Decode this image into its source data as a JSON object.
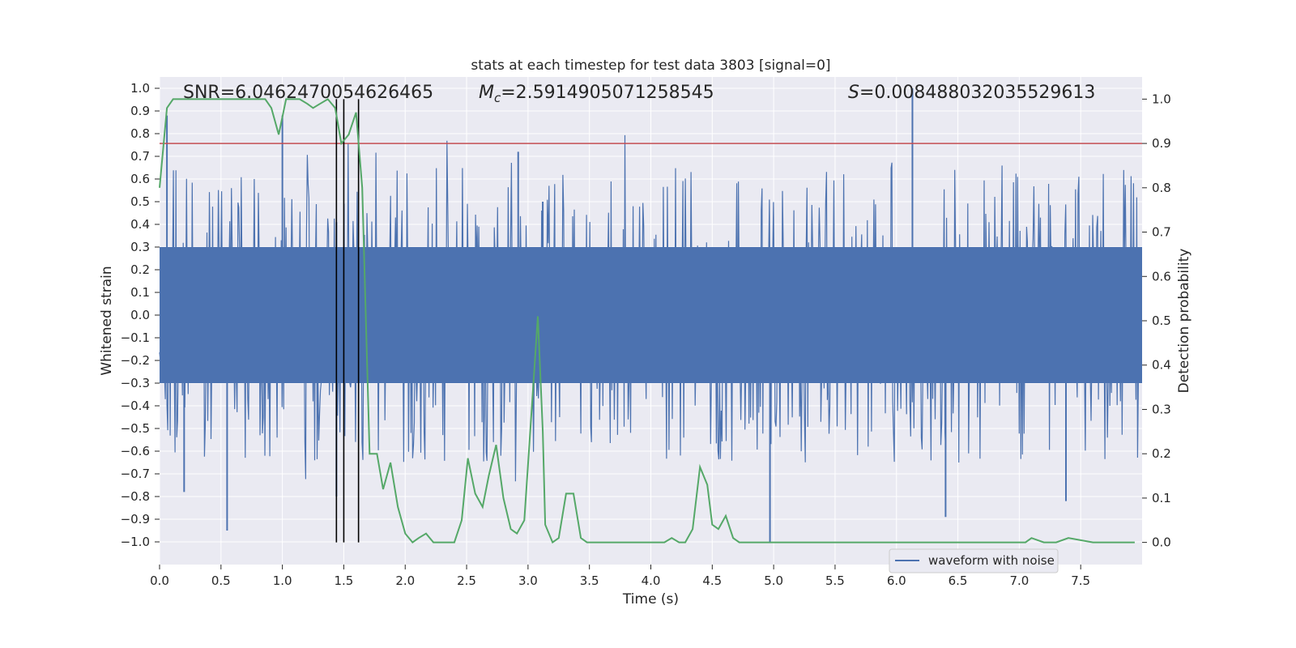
{
  "chart_data": {
    "type": "line",
    "title": "stats at each timestep for test data 3803 [signal=0]",
    "xlabel": "Time (s)",
    "ylabel": "Whitened strain",
    "y2label": "Detection probability",
    "xlim": [
      0.0,
      8.0
    ],
    "ylim": [
      -1.1,
      1.05
    ],
    "y2lim": [
      -0.05,
      1.05
    ],
    "x_ticks": [
      "0.0",
      "0.5",
      "1.0",
      "1.5",
      "2.0",
      "2.5",
      "3.0",
      "3.5",
      "4.0",
      "4.5",
      "5.0",
      "5.5",
      "6.0",
      "6.5",
      "7.0",
      "7.5"
    ],
    "y_ticks": [
      "1.0",
      "0.9",
      "0.8",
      "0.7",
      "0.6",
      "0.5",
      "0.4",
      "0.3",
      "0.2",
      "0.1",
      "0.0",
      "−0.1",
      "−0.2",
      "−0.3",
      "−0.4",
      "−0.5",
      "−0.6",
      "−0.7",
      "−0.8",
      "−0.9",
      "−1.0"
    ],
    "y2_ticks": [
      "1.0",
      "0.9",
      "0.8",
      "0.7",
      "0.6",
      "0.5",
      "0.4",
      "0.3",
      "0.2",
      "0.1",
      "0.0"
    ],
    "grid": true,
    "legend": {
      "placement": "lower-right",
      "entries": [
        "waveform with noise"
      ]
    },
    "annotations": {
      "snr": "SNR=6.0462470054626465",
      "mc_symbol": "M",
      "mc_sub": "c",
      "mc_value": "=2.5914905071258545",
      "s_symbol": "S",
      "s_value": "=0.008488032035529613"
    },
    "threshold": {
      "value": 0.9,
      "axis": "right",
      "color": "#c44e52"
    },
    "vertical_markers": [
      1.44,
      1.5,
      1.62
    ],
    "waveform": {
      "name": "waveform with noise",
      "color": "#4c72b0",
      "core_amplitude": 0.3,
      "spikes": [
        {
          "x": 0.55,
          "y": -0.95
        },
        {
          "x": 1.44,
          "y": 0.41
        },
        {
          "x": 1.44,
          "y": -0.8
        },
        {
          "x": 2.92,
          "y": 0.72
        },
        {
          "x": 3.12,
          "y": 0.5
        },
        {
          "x": 4.97,
          "y": -1.0
        },
        {
          "x": 6.13,
          "y": 1.0
        },
        {
          "x": 6.4,
          "y": -0.89
        },
        {
          "x": 7.38,
          "y": -0.82
        },
        {
          "x": 0.2,
          "y": -0.78
        },
        {
          "x": 0.06,
          "y": 0.88
        },
        {
          "x": 1.0,
          "y": 0.88
        }
      ]
    },
    "probability": {
      "color": "#55a868",
      "x": [
        0.0,
        0.06,
        0.11,
        0.17,
        0.23,
        0.28,
        0.34,
        0.4,
        0.46,
        0.51,
        0.57,
        0.63,
        0.68,
        0.74,
        0.8,
        0.86,
        0.91,
        0.97,
        1.03,
        1.08,
        1.14,
        1.2,
        1.25,
        1.31,
        1.37,
        1.43,
        1.48,
        1.54,
        1.6,
        1.65,
        1.71,
        1.77,
        1.82,
        1.88,
        1.94,
        2.0,
        2.06,
        2.11,
        2.17,
        2.23,
        2.28,
        2.34,
        2.4,
        2.46,
        2.51,
        2.57,
        2.63,
        2.68,
        2.74,
        2.8,
        2.86,
        2.91,
        2.97,
        3.03,
        3.08,
        3.12,
        3.14,
        3.2,
        3.25,
        3.31,
        3.37,
        3.43,
        3.48,
        3.54,
        3.6,
        3.65,
        3.71,
        3.77,
        3.82,
        3.88,
        3.94,
        4.0,
        4.06,
        4.11,
        4.17,
        4.23,
        4.28,
        4.34,
        4.4,
        4.46,
        4.5,
        4.55,
        4.61,
        4.67,
        4.72,
        4.78,
        4.84,
        4.9,
        4.95,
        5.0,
        5.5,
        6.0,
        6.5,
        7.0,
        7.05,
        7.1,
        7.2,
        7.3,
        7.4,
        7.6,
        7.94
      ],
      "y": [
        0.8,
        0.98,
        1.0,
        1.0,
        1.0,
        1.0,
        1.0,
        1.0,
        1.0,
        1.0,
        1.0,
        1.0,
        1.0,
        1.0,
        1.0,
        1.0,
        0.98,
        0.92,
        1.0,
        1.0,
        1.0,
        0.99,
        0.98,
        0.99,
        1.0,
        0.98,
        0.9,
        0.92,
        0.97,
        0.8,
        0.2,
        0.2,
        0.12,
        0.18,
        0.08,
        0.02,
        0.0,
        0.01,
        0.02,
        0.0,
        0.0,
        0.0,
        0.0,
        0.05,
        0.19,
        0.11,
        0.08,
        0.15,
        0.22,
        0.1,
        0.03,
        0.02,
        0.05,
        0.3,
        0.51,
        0.25,
        0.04,
        0.0,
        0.01,
        0.11,
        0.11,
        0.01,
        0.0,
        0.0,
        0.0,
        0.0,
        0.0,
        0.0,
        0.0,
        0.0,
        0.0,
        0.0,
        0.0,
        0.0,
        0.01,
        0.0,
        0.0,
        0.03,
        0.17,
        0.13,
        0.04,
        0.03,
        0.06,
        0.01,
        0.0,
        0.0,
        0.0,
        0.0,
        0.0,
        0.0,
        0.0,
        0.0,
        0.0,
        0.0,
        0.0,
        0.01,
        0.0,
        0.0,
        0.01,
        0.0,
        0.0
      ]
    }
  }
}
